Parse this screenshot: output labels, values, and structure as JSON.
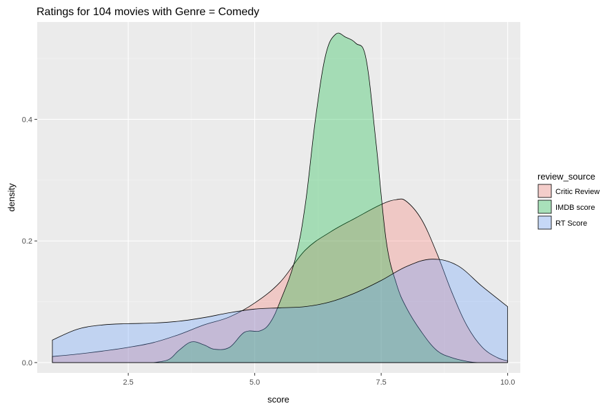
{
  "chart_data": {
    "type": "area",
    "title": "Ratings for 104 movies with Genre = Comedy",
    "xlabel": "score",
    "ylabel": "density",
    "xlim": [
      0.7,
      10.25
    ],
    "ylim": [
      -0.017,
      0.56
    ],
    "x_ticks": [
      2.5,
      5.0,
      7.5,
      10.0
    ],
    "x_tick_labels": [
      "2.5",
      "5.0",
      "7.5",
      "10.0"
    ],
    "y_ticks": [
      0.0,
      0.2,
      0.4
    ],
    "y_tick_labels": [
      "0.0",
      "0.2",
      "0.4"
    ],
    "grid": true,
    "legend": {
      "title": "review_source",
      "position": "right"
    },
    "series": [
      {
        "name": "Critic Review",
        "color": "#F8766D",
        "points": [
          [
            1.0,
            0.01
          ],
          [
            1.5,
            0.014
          ],
          [
            2.0,
            0.019
          ],
          [
            2.5,
            0.025
          ],
          [
            3.0,
            0.033
          ],
          [
            3.5,
            0.046
          ],
          [
            4.0,
            0.062
          ],
          [
            4.5,
            0.075
          ],
          [
            5.0,
            0.098
          ],
          [
            5.5,
            0.132
          ],
          [
            6.0,
            0.185
          ],
          [
            6.5,
            0.215
          ],
          [
            7.0,
            0.238
          ],
          [
            7.5,
            0.26
          ],
          [
            7.8,
            0.268
          ],
          [
            8.0,
            0.265
          ],
          [
            8.3,
            0.235
          ],
          [
            8.6,
            0.18
          ],
          [
            8.9,
            0.115
          ],
          [
            9.2,
            0.06
          ],
          [
            9.5,
            0.025
          ],
          [
            9.8,
            0.008
          ],
          [
            10.0,
            0.003
          ]
        ]
      },
      {
        "name": "IMDB score",
        "color": "#00BA38",
        "points": [
          [
            3.0,
            0.0
          ],
          [
            3.3,
            0.005
          ],
          [
            3.5,
            0.02
          ],
          [
            3.75,
            0.034
          ],
          [
            4.0,
            0.029
          ],
          [
            4.2,
            0.022
          ],
          [
            4.5,
            0.025
          ],
          [
            4.8,
            0.05
          ],
          [
            5.1,
            0.052
          ],
          [
            5.3,
            0.065
          ],
          [
            5.5,
            0.1
          ],
          [
            5.8,
            0.17
          ],
          [
            6.0,
            0.26
          ],
          [
            6.2,
            0.4
          ],
          [
            6.4,
            0.505
          ],
          [
            6.6,
            0.54
          ],
          [
            6.8,
            0.535
          ],
          [
            7.0,
            0.525
          ],
          [
            7.2,
            0.5
          ],
          [
            7.4,
            0.36
          ],
          [
            7.6,
            0.2
          ],
          [
            7.8,
            0.13
          ],
          [
            8.0,
            0.09
          ],
          [
            8.3,
            0.05
          ],
          [
            8.6,
            0.02
          ],
          [
            8.9,
            0.008
          ],
          [
            9.2,
            0.002
          ],
          [
            9.4,
            0.0
          ]
        ]
      },
      {
        "name": "RT Score",
        "color": "#619CFF",
        "points": [
          [
            1.0,
            0.037
          ],
          [
            1.5,
            0.055
          ],
          [
            2.0,
            0.062
          ],
          [
            2.5,
            0.064
          ],
          [
            3.0,
            0.065
          ],
          [
            3.5,
            0.068
          ],
          [
            4.0,
            0.074
          ],
          [
            4.5,
            0.082
          ],
          [
            5.0,
            0.088
          ],
          [
            5.5,
            0.09
          ],
          [
            6.0,
            0.092
          ],
          [
            6.5,
            0.1
          ],
          [
            7.0,
            0.115
          ],
          [
            7.5,
            0.135
          ],
          [
            8.0,
            0.158
          ],
          [
            8.5,
            0.17
          ],
          [
            9.0,
            0.16
          ],
          [
            9.5,
            0.125
          ],
          [
            10.0,
            0.092
          ]
        ]
      }
    ]
  }
}
